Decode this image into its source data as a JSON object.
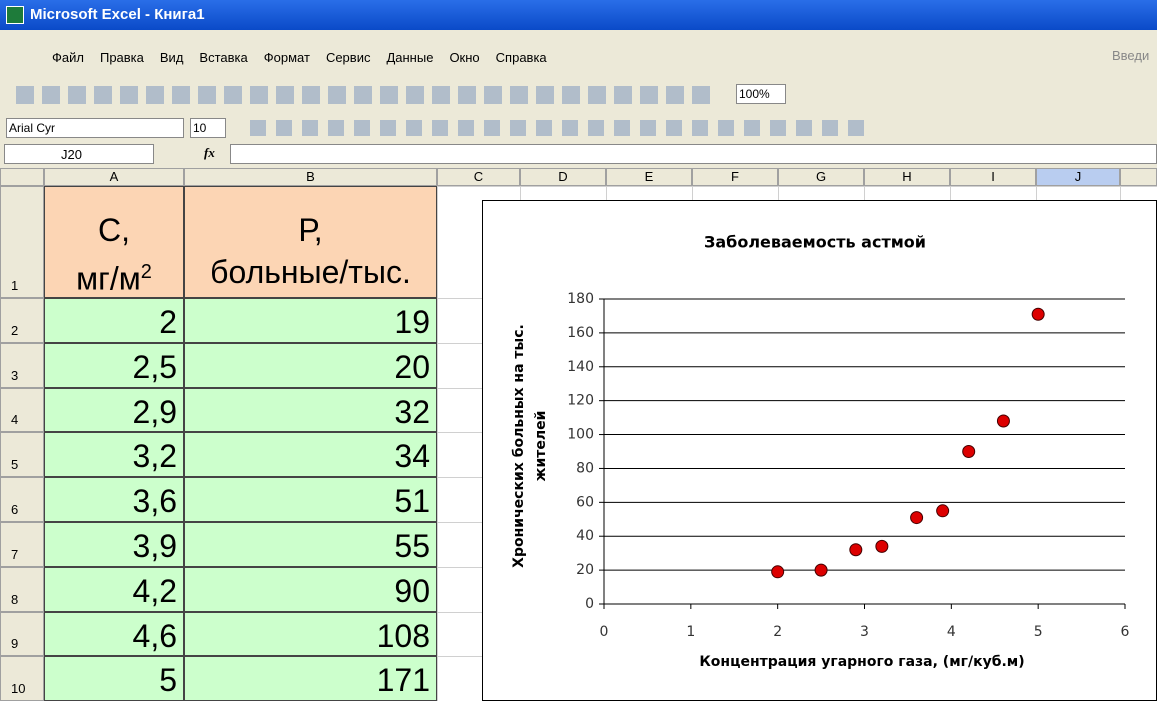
{
  "window": {
    "title": "Microsoft Excel - Книга1"
  },
  "menu": [
    "Файл",
    "Правка",
    "Вид",
    "Вставка",
    "Формат",
    "Сервис",
    "Данные",
    "Окно",
    "Справка"
  ],
  "help_box": "Введи",
  "toolbar": {
    "zoom": "100%"
  },
  "format_bar": {
    "font": "Arial Cyr",
    "size": "10"
  },
  "formula_bar": {
    "cell": "J20",
    "fx": "fx"
  },
  "columns": [
    "A",
    "B",
    "C",
    "D",
    "E",
    "F",
    "G",
    "H",
    "I",
    "J"
  ],
  "rows": [
    "1",
    "2",
    "3",
    "4",
    "5",
    "6",
    "7",
    "8",
    "9",
    "10"
  ],
  "table": {
    "header": [
      {
        "line1": "С,",
        "line2": "мг/м",
        "sup": "2"
      },
      {
        "line1": "Р,",
        "line2": "больные/тыс."
      }
    ],
    "rows": [
      [
        "2",
        "19"
      ],
      [
        "2,5",
        "20"
      ],
      [
        "2,9",
        "32"
      ],
      [
        "3,2",
        "34"
      ],
      [
        "3,6",
        "51"
      ],
      [
        "3,9",
        "55"
      ],
      [
        "4,2",
        "90"
      ],
      [
        "4,6",
        "108"
      ],
      [
        "5",
        "171"
      ]
    ]
  },
  "chart_data": {
    "type": "scatter",
    "title": "Заболеваемость астмой",
    "x_label": "Концентрация угарного газа, (мг/куб.м)",
    "y_label": "Хронических больных на тыс. жителей",
    "x": [
      2,
      2.5,
      2.9,
      3.2,
      3.6,
      3.9,
      4.2,
      4.6,
      5
    ],
    "values": [
      19,
      20,
      32,
      34,
      51,
      55,
      90,
      108,
      171
    ],
    "color": "#dd0000",
    "xlim": [
      0,
      6
    ],
    "xticks": [
      0,
      1,
      2,
      3,
      4,
      5,
      6
    ],
    "ylim": [
      0,
      180
    ],
    "yticks": [
      0,
      20,
      40,
      60,
      80,
      100,
      120,
      140,
      160,
      180
    ],
    "grid": true
  }
}
